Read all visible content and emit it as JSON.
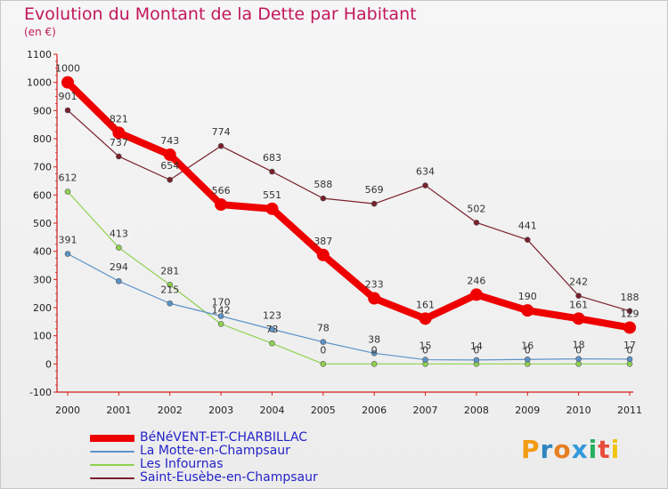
{
  "title": "Evolution du Montant de la Dette par Habitant",
  "unit": "(en €)",
  "logo": {
    "text": "Proxiti",
    "letter_colors": [
      "#f39c12",
      "#2e86c1",
      "#e67e22",
      "#3498db",
      "#27ae60",
      "#e74c3c",
      "#f1c40f"
    ]
  },
  "chart_data": {
    "type": "line",
    "title": "Evolution du Montant de la Dette par Habitant",
    "ylabel": "(en €)",
    "xlabel": "",
    "categories": [
      "2000",
      "2001",
      "2002",
      "2003",
      "2004",
      "2005",
      "2006",
      "2007",
      "2008",
      "2009",
      "2010",
      "2011"
    ],
    "ylim": [
      -100,
      1100
    ],
    "yticks": [
      -100,
      0,
      100,
      200,
      300,
      400,
      500,
      600,
      700,
      800,
      900,
      1000,
      1100
    ],
    "grid": false,
    "legend_position": "bottom-left",
    "series": [
      {
        "name": "BéNéVENT-ET-CHARBILLAC",
        "color": "#ee0000",
        "emphasis": true,
        "values": [
          1000,
          821,
          743,
          566,
          551,
          387,
          233,
          161,
          246,
          190,
          161,
          129
        ],
        "labels": [
          "1000",
          "821",
          "743",
          "566",
          "551",
          "387",
          "233",
          "161",
          "246",
          "190",
          "161",
          "129"
        ]
      },
      {
        "name": "La Motte-en-Champsaur",
        "color": "#5b93c8",
        "values": [
          391,
          294,
          215,
          170,
          123,
          78,
          38,
          15,
          14,
          16,
          18,
          17
        ],
        "labels": [
          "391",
          "294",
          "215",
          "170",
          "123",
          "78",
          "38",
          "15",
          "14",
          "16",
          "18",
          "17"
        ]
      },
      {
        "name": "Les Infournas",
        "color": "#8fd14f",
        "values": [
          612,
          413,
          281,
          142,
          73,
          0,
          0,
          0,
          0,
          0,
          0,
          0
        ],
        "labels": [
          "612",
          "413",
          "281",
          "142",
          "73",
          "0",
          "0",
          "0",
          "0",
          "0",
          "0",
          "0"
        ]
      },
      {
        "name": "Saint-Eusèbe-en-Champsaur",
        "color": "#7a1f2b",
        "values": [
          901,
          737,
          654,
          774,
          683,
          588,
          569,
          634,
          502,
          441,
          242,
          188
        ],
        "labels": [
          "901",
          "737",
          "654",
          "774",
          "683",
          "588",
          "569",
          "634",
          "502",
          "441",
          "242",
          "188"
        ]
      }
    ]
  }
}
